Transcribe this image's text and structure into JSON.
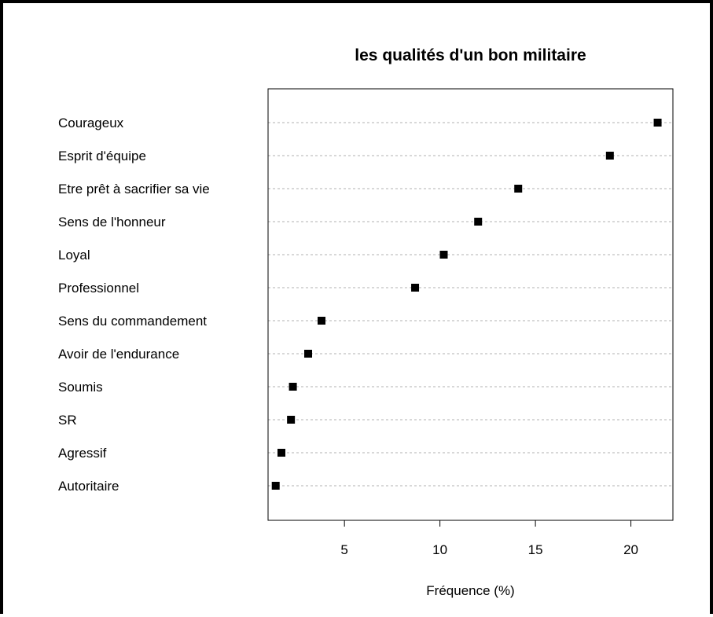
{
  "chart_data": {
    "type": "scatter",
    "title": "les qualités d'un bon militaire",
    "xlabel": "Fréquence (%)",
    "ylabel": "",
    "xlim": [
      1.0,
      22.2
    ],
    "xticks": [
      5,
      10,
      15,
      20
    ],
    "grid": "dashed horizontal lines at each category",
    "marker": "filled square",
    "marker_color": "#000000",
    "categories": [
      "Courageux",
      "Esprit d'équipe",
      "Etre prêt à sacrifier sa vie",
      "Sens de l'honneur",
      "Loyal",
      "Professionnel",
      "Sens du commandement",
      "Avoir de l'endurance",
      "Soumis",
      "SR",
      "Agressif",
      "Autoritaire"
    ],
    "values": [
      21.4,
      18.9,
      14.1,
      12.0,
      10.2,
      8.7,
      3.8,
      3.1,
      2.3,
      2.2,
      1.7,
      1.4
    ]
  }
}
